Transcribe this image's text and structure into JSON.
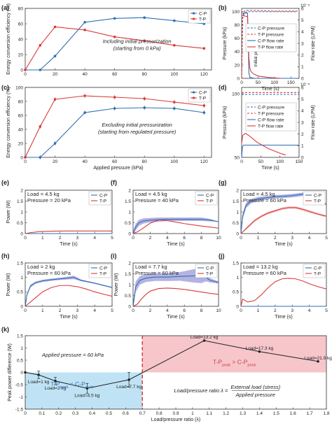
{
  "colors": {
    "cp": "#2f6fb5",
    "tp": "#d93a3a",
    "band_cp": "#9a9ad8",
    "band_tp": "#f1b6b6",
    "region_lo": "#bfe3f4",
    "region_hi": "#f6c6cb",
    "divider": "#e03b3b"
  },
  "chart_data": [
    {
      "id": "a",
      "panel_label": "(a)",
      "type": "line",
      "annotation": [
        "Including initial pressurization",
        "(starting from 0 kPa)"
      ],
      "xlabel": "",
      "ylabel": "Energy conversion efficiency (%)",
      "xlim": [
        0,
        125
      ],
      "ylim": [
        0,
        80
      ],
      "xticks": [
        0,
        20,
        40,
        60,
        80,
        100,
        120
      ],
      "yticks": [
        0,
        20,
        40,
        60,
        80
      ],
      "legend": "top-right",
      "series": [
        {
          "name": "C-P",
          "color": "#2f6fb5",
          "x": [
            0,
            10,
            20,
            40,
            60,
            80,
            100,
            120
          ],
          "y": [
            0,
            0,
            18,
            62,
            67,
            68,
            64,
            60
          ]
        },
        {
          "name": "T-P",
          "color": "#d93a3a",
          "x": [
            0,
            10,
            20,
            40,
            60,
            80,
            100,
            120
          ],
          "y": [
            0,
            32,
            56,
            52,
            43,
            38,
            32,
            28
          ]
        }
      ]
    },
    {
      "id": "b",
      "panel_label": "(b)",
      "type": "line",
      "xlabel": "Time (s)",
      "ylabel": "Pressure (kPa)",
      "y2label": "Flow rate (LPM)",
      "xlim": [
        0,
        175
      ],
      "ylim": [
        0,
        105
      ],
      "y2lim": [
        0,
        6
      ],
      "xticks": [
        0,
        50,
        100,
        150
      ],
      "yticks": [
        0,
        20,
        40,
        60,
        80,
        100
      ],
      "y2ticks": [
        0,
        1,
        2,
        3,
        4,
        5,
        6
      ],
      "y2_multiplier": "10⁻⁵",
      "annotation": "Initial pressurization",
      "legend": "right",
      "legend_entries": [
        "C-P pressure",
        "T-P pressure",
        "C-P flow rate",
        "T-P flow rate"
      ],
      "series": [
        {
          "name": "C-P pressure",
          "color": "#2f6fb5",
          "dash": true,
          "axis": "left",
          "x": [
            0,
            3,
            8,
            15,
            25,
            100,
            170
          ],
          "y": [
            0,
            90,
            98,
            100,
            100,
            100,
            100
          ]
        },
        {
          "name": "T-P pressure",
          "color": "#d93a3a",
          "dash": true,
          "axis": "left",
          "x": [
            0,
            3,
            8,
            15,
            25,
            100,
            170
          ],
          "y": [
            0,
            92,
            101,
            102,
            102,
            101,
            101
          ]
        },
        {
          "name": "C-P flow rate",
          "color": "#2f6fb5",
          "dash": false,
          "axis": "right",
          "x": [
            0,
            18,
            20,
            22,
            25,
            30,
            40,
            60,
            100,
            170
          ],
          "y": [
            5.6,
            5.6,
            3.2,
            0.5,
            0.1,
            0.05,
            0,
            0,
            0,
            0
          ]
        },
        {
          "name": "T-P flow rate",
          "color": "#d93a3a",
          "dash": false,
          "axis": "right",
          "x": [
            0,
            18,
            22,
            25,
            28,
            35,
            50,
            80,
            120
          ],
          "y": [
            5.4,
            5.3,
            1.8,
            0.9,
            0.6,
            0.4,
            0.2,
            0.08,
            0
          ]
        }
      ]
    },
    {
      "id": "c",
      "panel_label": "(c)",
      "type": "line",
      "annotation": [
        "Excluding initial pressurization",
        "(starting from regulated pressure)"
      ],
      "xlabel": "Applied pressure (kPa)",
      "ylabel": "Energy conversion efficiency (%)",
      "xlim": [
        0,
        125
      ],
      "ylim": [
        0,
        100
      ],
      "xticks": [
        0,
        20,
        40,
        60,
        80,
        100,
        120
      ],
      "yticks": [
        0,
        20,
        40,
        60,
        80,
        100
      ],
      "legend": "top-right",
      "series": [
        {
          "name": "C-P",
          "color": "#2f6fb5",
          "x": [
            0,
            10,
            20,
            40,
            60,
            80,
            100,
            120
          ],
          "y": [
            0,
            0,
            20,
            64,
            70,
            71,
            70,
            64
          ]
        },
        {
          "name": "T-P",
          "color": "#d93a3a",
          "x": [
            0,
            10,
            20,
            40,
            60,
            80,
            100,
            120
          ],
          "y": [
            0,
            44,
            83,
            88,
            86,
            84,
            79,
            74
          ]
        }
      ]
    },
    {
      "id": "d",
      "panel_label": "(d)",
      "type": "line",
      "xlabel": "Time (s)",
      "ylabel": "Pressure (kPa)",
      "y2label": "Flow rate (LPM)",
      "xlim": [
        0,
        150
      ],
      "ylim": [
        50,
        105
      ],
      "y2lim": [
        0,
        6
      ],
      "xticks": [
        0,
        50,
        100,
        150
      ],
      "yticks": [
        50,
        100
      ],
      "y2ticks": [
        0,
        1,
        2,
        3,
        4,
        5,
        6
      ],
      "y2_multiplier": "10⁻⁵",
      "legend": "right",
      "legend_entries": [
        "C-P pressure",
        "T-P pressure",
        "C-P flow rate",
        "T-P flow rate"
      ],
      "series": [
        {
          "name": "C-P pressure",
          "color": "#2f6fb5",
          "dash": true,
          "axis": "left",
          "x": [
            0,
            150
          ],
          "y": [
            99.5,
            99.5
          ]
        },
        {
          "name": "T-P pressure",
          "color": "#d93a3a",
          "dash": true,
          "axis": "left",
          "x": [
            0,
            150
          ],
          "y": [
            101,
            101
          ]
        },
        {
          "name": "C-P flow rate",
          "color": "#2f6fb5",
          "dash": false,
          "axis": "right",
          "x": [
            0,
            2,
            5,
            150
          ],
          "y": [
            0,
            0.9,
            1.05,
            1.05
          ]
        },
        {
          "name": "T-P flow rate",
          "color": "#d93a3a",
          "dash": false,
          "axis": "right",
          "x": [
            0,
            3,
            10,
            20,
            40,
            70,
            100,
            115
          ],
          "y": [
            1.2,
            1.9,
            2.05,
            1.85,
            1.3,
            0.75,
            0.35,
            0.2
          ]
        }
      ]
    },
    {
      "id": "e",
      "panel_label": "(e)",
      "type": "line",
      "annotation": [
        "Load = 4.5 kg",
        "Pressure = 20 kPa"
      ],
      "xlabel": "Time (s)",
      "ylabel": "Power (W)",
      "xlim": [
        0,
        5
      ],
      "ylim": [
        0,
        2
      ],
      "xticks": [
        0,
        1,
        2,
        3,
        4,
        5
      ],
      "yticks": [
        0,
        0.5,
        1,
        1.5,
        2
      ],
      "legend": "top-right",
      "series": [
        {
          "name": "C-P",
          "color": "#2f6fb5",
          "x": [
            0,
            5
          ],
          "y": [
            0,
            0
          ]
        },
        {
          "name": "T-P",
          "color": "#d93a3a",
          "x": [
            0,
            0.3,
            0.8,
            1.5,
            2.5,
            3.5,
            5
          ],
          "y": [
            0,
            0.04,
            0.09,
            0.11,
            0.12,
            0.12,
            0.12
          ]
        }
      ]
    },
    {
      "id": "f",
      "panel_label": "(f)",
      "type": "line",
      "annotation": [
        "Load = 4.5 kg",
        "Pressure = 40 kPa"
      ],
      "xlabel": "Time (s)",
      "ylabel": "",
      "xlim": [
        0,
        10
      ],
      "ylim": [
        0,
        2
      ],
      "xticks": [
        0,
        2,
        4,
        6,
        8,
        10
      ],
      "yticks": [
        0,
        0.5,
        1,
        1.5,
        2
      ],
      "legend": "top-right",
      "series": [
        {
          "name": "C-P",
          "color": "#2f6fb5",
          "x": [
            0,
            0.3,
            0.7,
            1.2,
            2,
            3,
            4,
            6,
            8,
            9,
            10
          ],
          "y": [
            0,
            0.3,
            0.5,
            0.58,
            0.62,
            0.64,
            0.66,
            0.66,
            0.66,
            0.62,
            0.55
          ],
          "band": [
            0.12,
            0.15,
            0.14,
            0.12,
            0.1,
            0.1,
            0.08,
            0.08,
            0.08,
            0.06
          ]
        },
        {
          "name": "T-P",
          "color": "#d93a3a",
          "x": [
            0,
            0.5,
            1,
            2,
            3,
            4,
            5,
            6,
            7,
            8,
            9,
            10
          ],
          "y": [
            0,
            0.08,
            0.2,
            0.48,
            0.63,
            0.6,
            0.53,
            0.46,
            0.4,
            0.35,
            0.3,
            0.25
          ]
        }
      ]
    },
    {
      "id": "g",
      "panel_label": "(g)",
      "type": "line",
      "annotation": [
        "Load = 4.5 kg",
        "Pressure = 60 kPa"
      ],
      "xlabel": "Time (s)",
      "ylabel": "",
      "xlim": [
        0,
        5
      ],
      "ylim": [
        0,
        2
      ],
      "xticks": [
        0,
        1,
        2,
        3,
        4,
        5
      ],
      "yticks": [
        0,
        0.5,
        1,
        1.5,
        2
      ],
      "legend": "top-right",
      "series": [
        {
          "name": "C-P",
          "color": "#2f6fb5",
          "x": [
            0,
            0.1,
            0.3,
            0.6,
            1,
            1.5,
            2,
            2.5,
            3,
            3.5,
            3.9,
            4.2,
            4.6,
            5
          ],
          "y": [
            0,
            0.8,
            1.3,
            1.5,
            1.6,
            1.65,
            1.7,
            1.72,
            1.75,
            1.8,
            1.85,
            1.7,
            1.5,
            1.35
          ],
          "band": [
            0.05,
            0.15,
            0.12,
            0.1,
            0.09,
            0.08,
            0.08,
            0.08,
            0.08,
            0.08,
            0.08,
            0.06,
            0.05,
            0.05
          ]
        },
        {
          "name": "T-P",
          "color": "#d93a3a",
          "x": [
            0,
            0.4,
            0.8,
            1.2,
            1.6,
            2,
            2.4,
            2.8,
            3.2,
            3.6,
            4,
            4.5,
            5
          ],
          "y": [
            0,
            0.3,
            0.6,
            0.8,
            0.95,
            1.05,
            1.15,
            1.2,
            1.2,
            1.12,
            1.02,
            0.9,
            0.8
          ],
          "band": [
            0.02,
            0.05,
            0.06,
            0.06,
            0.06,
            0.06,
            0.06,
            0.06,
            0.06,
            0.06,
            0.06,
            0.05,
            0.05
          ]
        }
      ]
    },
    {
      "id": "h",
      "panel_label": "(h)",
      "type": "line",
      "annotation": [
        "Load = 2 kg",
        "Pressure = 60 kPa"
      ],
      "xlabel": "Time (s)",
      "ylabel": "Power (W)",
      "xlim": [
        0,
        5
      ],
      "ylim": [
        0,
        1.5
      ],
      "xticks": [
        0,
        1,
        2,
        3,
        4,
        5
      ],
      "yticks": [
        0,
        0.5,
        1,
        1.5
      ],
      "legend": "top-right",
      "series": [
        {
          "name": "C-P",
          "color": "#2f6fb5",
          "x": [
            0,
            0.1,
            0.3,
            0.6,
            1,
            1.5,
            2,
            2.5,
            2.8,
            3.2,
            4,
            5
          ],
          "y": [
            0,
            0.4,
            0.7,
            0.82,
            0.88,
            0.92,
            0.95,
            0.98,
            1.0,
            0.9,
            0.8,
            0.65
          ],
          "band": [
            0.02,
            0.05,
            0.05,
            0.04,
            0.04,
            0.04,
            0.04,
            0.05,
            0.06,
            0.03,
            0.02,
            0.02
          ]
        },
        {
          "name": "T-P",
          "color": "#d93a3a",
          "x": [
            0,
            0.5,
            1,
            1.5,
            2,
            2.5,
            3,
            3.5,
            4,
            4.5,
            5
          ],
          "y": [
            0,
            0.25,
            0.5,
            0.65,
            0.72,
            0.72,
            0.68,
            0.6,
            0.5,
            0.42,
            0.35
          ]
        }
      ]
    },
    {
      "id": "i",
      "panel_label": "(i)",
      "type": "line",
      "annotation": [
        "Load = 7.7 kg",
        "Pressure = 60 kPa"
      ],
      "xlabel": "Time (s)",
      "ylabel": "Power (W)",
      "xlim": [
        0,
        10
      ],
      "ylim": [
        0,
        2
      ],
      "xticks": [
        0,
        2,
        4,
        6,
        8,
        10
      ],
      "yticks": [
        0,
        0.5,
        1,
        1.5,
        2
      ],
      "legend": "top-right",
      "series": [
        {
          "name": "C-P",
          "color": "#2f6fb5",
          "x": [
            0,
            0.3,
            0.8,
            1.5,
            2.5,
            4,
            5.5,
            7,
            8,
            8.5,
            9,
            10
          ],
          "y": [
            0,
            0.9,
            1.2,
            1.3,
            1.35,
            1.35,
            1.38,
            1.4,
            1.42,
            1.35,
            1.2,
            1.1
          ],
          "band": [
            0.1,
            0.25,
            0.2,
            0.18,
            0.18,
            0.18,
            0.2,
            0.3,
            0.35,
            0.2,
            0.1,
            0.05
          ]
        },
        {
          "name": "T-P",
          "color": "#d93a3a",
          "x": [
            0,
            0.5,
            1,
            1.5,
            2,
            3,
            4,
            5,
            6,
            7,
            8,
            9,
            10
          ],
          "y": [
            0,
            0.1,
            0.35,
            0.55,
            0.7,
            0.82,
            0.84,
            0.82,
            0.78,
            0.72,
            0.66,
            0.6,
            0.55
          ]
        }
      ]
    },
    {
      "id": "j",
      "panel_label": "(j)",
      "type": "line",
      "annotation": [
        "Load = 13.2 kg",
        "Pressure = 60 kPa"
      ],
      "xlabel": "Time (s)",
      "ylabel": "",
      "xlim": [
        0,
        5
      ],
      "ylim": [
        0,
        1.5
      ],
      "xticks": [
        0,
        1,
        2,
        3,
        4,
        5
      ],
      "yticks": [
        0,
        0.5,
        1,
        1.5
      ],
      "legend": "top-right",
      "series": [
        {
          "name": "C-P",
          "color": "#2f6fb5",
          "x": [
            0,
            5
          ],
          "y": [
            0,
            0
          ]
        },
        {
          "name": "T-P",
          "color": "#d93a3a",
          "x": [
            0,
            0.1,
            0.4,
            0.8,
            1.2,
            1.6,
            2,
            2.4,
            2.8,
            3.2,
            3.6,
            4,
            4.5,
            5
          ],
          "y": [
            0,
            0.25,
            0.15,
            0.2,
            0.4,
            0.65,
            0.85,
            0.95,
            0.97,
            0.95,
            0.88,
            0.78,
            0.68,
            0.6
          ]
        }
      ]
    },
    {
      "id": "k",
      "panel_label": "(k)",
      "type": "line",
      "xlabel": "Load/pressure ratio (λ)",
      "ylabel": "Peak power difference (W)",
      "xlim": [
        0,
        1.8
      ],
      "ylim": [
        -1.5,
        1.5
      ],
      "xticks": [
        0,
        0.1,
        0.2,
        0.3,
        0.4,
        0.5,
        0.6,
        0.7,
        0.8,
        0.9,
        1,
        1.1,
        1.2,
        1.3,
        1.4,
        1.5,
        1.6,
        1.7,
        1.8
      ],
      "yticks": [
        -1.5,
        -1,
        -0.5,
        0,
        0.5,
        1,
        1.5
      ],
      "divider_x": 0.7,
      "annotation_left": "Applied pressure = 60 kPa",
      "region_lo_label": "T-P",
      "region_hi_label": "T-P",
      "formula": {
        "lhs": "Load/pressure ratio λ =",
        "num": "External load (stress)",
        "den": "Applied pressure"
      },
      "points": [
        {
          "x": 0,
          "y": 0,
          "err": 0
        },
        {
          "x": 0.08,
          "y": -0.1,
          "err": 0.15,
          "label": "Load=1 kg"
        },
        {
          "x": 0.18,
          "y": -0.35,
          "err": 0.15,
          "label": "Load=2 kg"
        },
        {
          "x": 0.37,
          "y": -0.65,
          "err": 0.2,
          "label": "Load=4.5 kg"
        },
        {
          "x": 0.62,
          "y": -0.3,
          "err": 0.3,
          "label": "Load=7.7 kg"
        },
        {
          "x": 1.07,
          "y": 1.3,
          "err": 0,
          "label": "Load=13.2 kg"
        },
        {
          "x": 1.4,
          "y": 0.85,
          "err": 0,
          "label": "Load=17.3 kg"
        },
        {
          "x": 1.75,
          "y": 0.45,
          "err": 0,
          "label": "Load=21.9 kg"
        }
      ]
    }
  ]
}
